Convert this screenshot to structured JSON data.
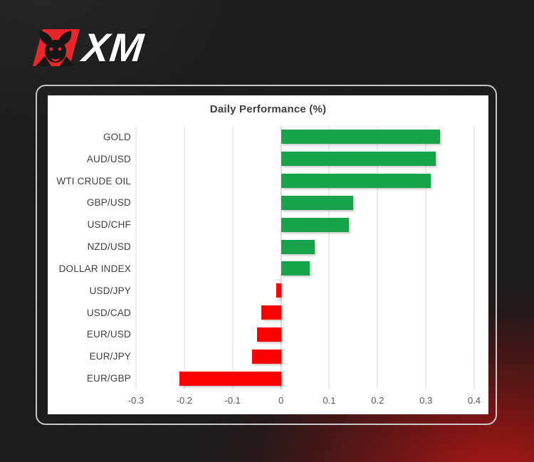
{
  "logo": {
    "brand": "XM",
    "icon": "xm-bull-icon",
    "brand_red": "#e8262c",
    "text_color": "#ffffff"
  },
  "card": {
    "background": "#ffffff",
    "outline_color": "#d7d7d7"
  },
  "chart_data": {
    "type": "bar",
    "orientation": "horizontal",
    "title": "Daily Performance (%)",
    "categories": [
      "GOLD",
      "AUD/USD",
      "WTI CRUDE OIL",
      "GBP/USD",
      "USD/CHF",
      "NZD/USD",
      "DOLLAR INDEX",
      "USD/JPY",
      "USD/CAD",
      "EUR/USD",
      "EUR/JPY",
      "EUR/GBP"
    ],
    "values": [
      0.33,
      0.32,
      0.31,
      0.15,
      0.14,
      0.07,
      0.06,
      -0.01,
      -0.04,
      -0.05,
      -0.06,
      -0.21
    ],
    "xlim": [
      -0.3,
      0.4
    ],
    "xticks": [
      -0.3,
      -0.2,
      -0.1,
      0,
      0.1,
      0.2,
      0.3,
      0.4
    ],
    "tick_labels": [
      "-0.3",
      "-0.2",
      "-0.1",
      "0",
      "0.1",
      "0.2",
      "0.3",
      "0.4"
    ],
    "xlabel": "",
    "ylabel": "",
    "grid": true,
    "legend_position": "none",
    "positive_color": "#17a34c",
    "negative_color": "#fe0000",
    "gridline_color": "#dadada",
    "zero_line_color": "#bdbdbd"
  }
}
